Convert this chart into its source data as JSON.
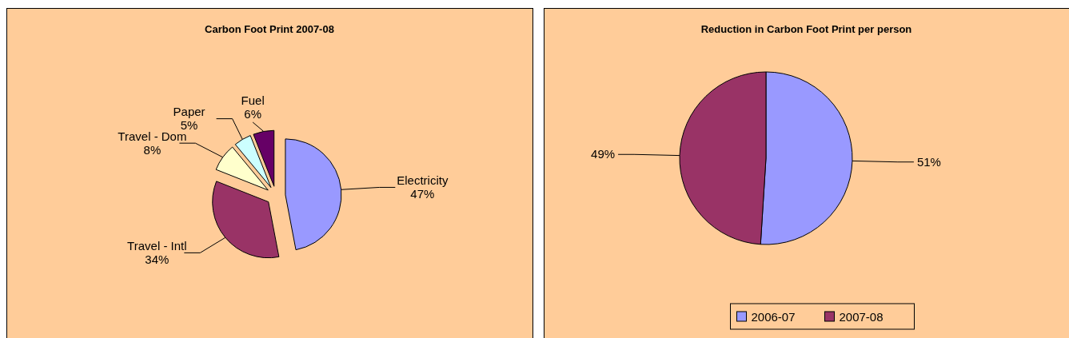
{
  "chart_data": [
    {
      "type": "pie",
      "title": "Carbon Foot Print 2007-08",
      "categories": [
        "Electricity",
        "Travel - Intl",
        "Travel - Dom",
        "Paper",
        "Fuel"
      ],
      "values": [
        47,
        34,
        8,
        5,
        6
      ],
      "value_labels": [
        "47%",
        "34%",
        "8%",
        "5%",
        "6%"
      ],
      "colors": [
        "#9999ff",
        "#993366",
        "#ffffcc",
        "#ccffff",
        "#660066"
      ],
      "legend": false
    },
    {
      "type": "pie",
      "title": "Reduction in Carbon Foot Print per person",
      "categories": [
        "2006-07",
        "2007-08"
      ],
      "values": [
        51,
        49
      ],
      "value_labels": [
        "51%",
        "49%"
      ],
      "colors": [
        "#9999ff",
        "#993366"
      ],
      "legend": "bottom"
    }
  ]
}
